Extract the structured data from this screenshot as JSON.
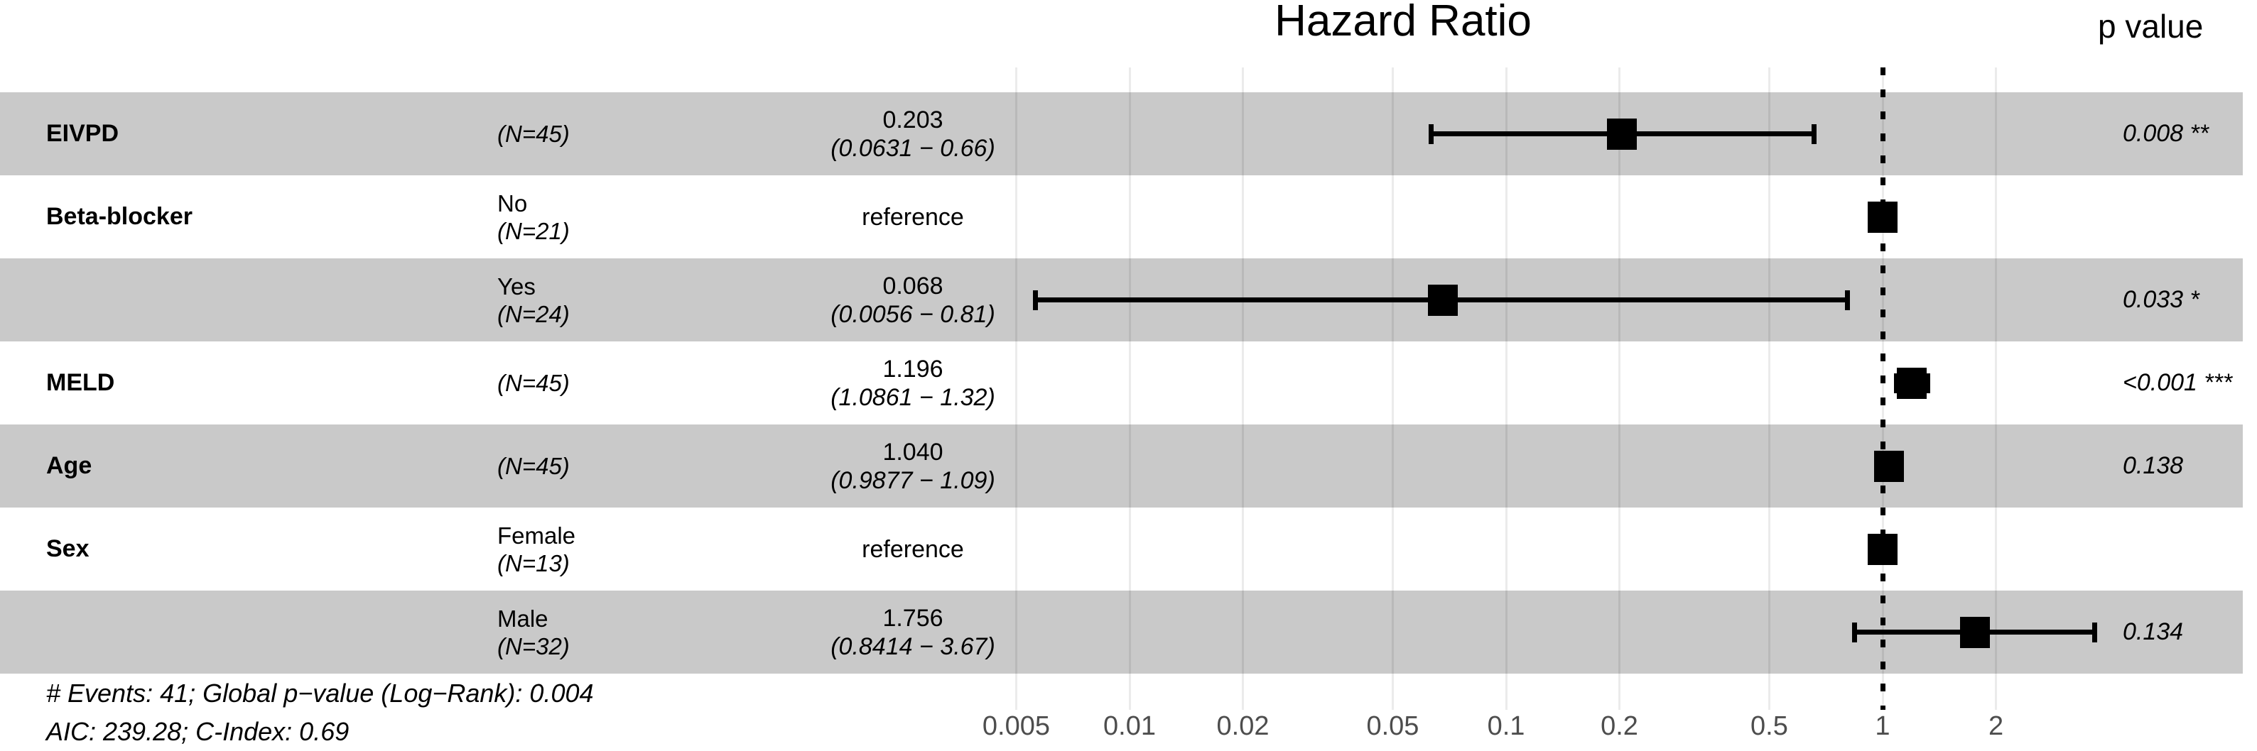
{
  "header": {
    "title": "Hazard Ratio",
    "p_value_label": "p value"
  },
  "chart_data": {
    "type": "forest",
    "x_scale": "log10",
    "x_ticks": [
      0.005,
      0.01,
      0.02,
      0.05,
      0.1,
      0.2,
      0.5,
      1,
      2
    ],
    "x_tick_labels": [
      "0.005",
      "0.01",
      "0.02",
      "0.05",
      "0.1",
      "0.2",
      "0.5",
      "1",
      "2"
    ],
    "reference_line": 1,
    "rows": [
      {
        "variable": "EIVPD",
        "level": "",
        "n": "(N=45)",
        "estimate": "0.203",
        "ci": "(0.0631 − 0.66)",
        "hr": 0.203,
        "ci_low": 0.0631,
        "ci_high": 0.66,
        "p": "0.008 **",
        "shaded": true,
        "reference": false
      },
      {
        "variable": "Beta-blocker",
        "level": "No",
        "n": "(N=21)",
        "estimate": "reference",
        "ci": "",
        "hr": 1,
        "ci_low": null,
        "ci_high": null,
        "p": "",
        "shaded": false,
        "reference": true
      },
      {
        "variable": "",
        "level": "Yes",
        "n": "(N=24)",
        "estimate": "0.068",
        "ci": "(0.0056 − 0.81)",
        "hr": 0.068,
        "ci_low": 0.0056,
        "ci_high": 0.81,
        "p": "0.033 *",
        "shaded": true,
        "reference": false
      },
      {
        "variable": "MELD",
        "level": "",
        "n": "(N=45)",
        "estimate": "1.196",
        "ci": "(1.0861 − 1.32)",
        "hr": 1.196,
        "ci_low": 1.0861,
        "ci_high": 1.32,
        "p": "<0.001 ***",
        "shaded": false,
        "reference": false
      },
      {
        "variable": "Age",
        "level": "",
        "n": "(N=45)",
        "estimate": "1.040",
        "ci": "(0.9877 − 1.09)",
        "hr": 1.04,
        "ci_low": 0.9877,
        "ci_high": 1.09,
        "p": "0.138",
        "shaded": true,
        "reference": false
      },
      {
        "variable": "Sex",
        "level": "Female",
        "n": "(N=13)",
        "estimate": "reference",
        "ci": "",
        "hr": 1,
        "ci_low": null,
        "ci_high": null,
        "p": "",
        "shaded": false,
        "reference": true
      },
      {
        "variable": "",
        "level": "Male",
        "n": "(N=32)",
        "estimate": "1.756",
        "ci": "(0.8414 − 3.67)",
        "hr": 1.756,
        "ci_low": 0.8414,
        "ci_high": 3.67,
        "p": "0.134",
        "shaded": true,
        "reference": false
      }
    ],
    "footnote_events": "# Events: 41; Global p−value (Log−Rank): 0.004",
    "footnote_fit": "AIC: 239.28; C-Index: 0.69"
  },
  "footer": {
    "line1": "# Events: 41; Global p−value (Log−Rank): 0.004",
    "line2": "AIC: 239.28; C-Index: 0.69"
  },
  "colors": {
    "stripe": "#c9c9c9",
    "marker": "#000000",
    "axis_label": "#4d4d4d",
    "reference_line": "#000000",
    "gridline": "rgba(0,0,0,0.08)"
  }
}
